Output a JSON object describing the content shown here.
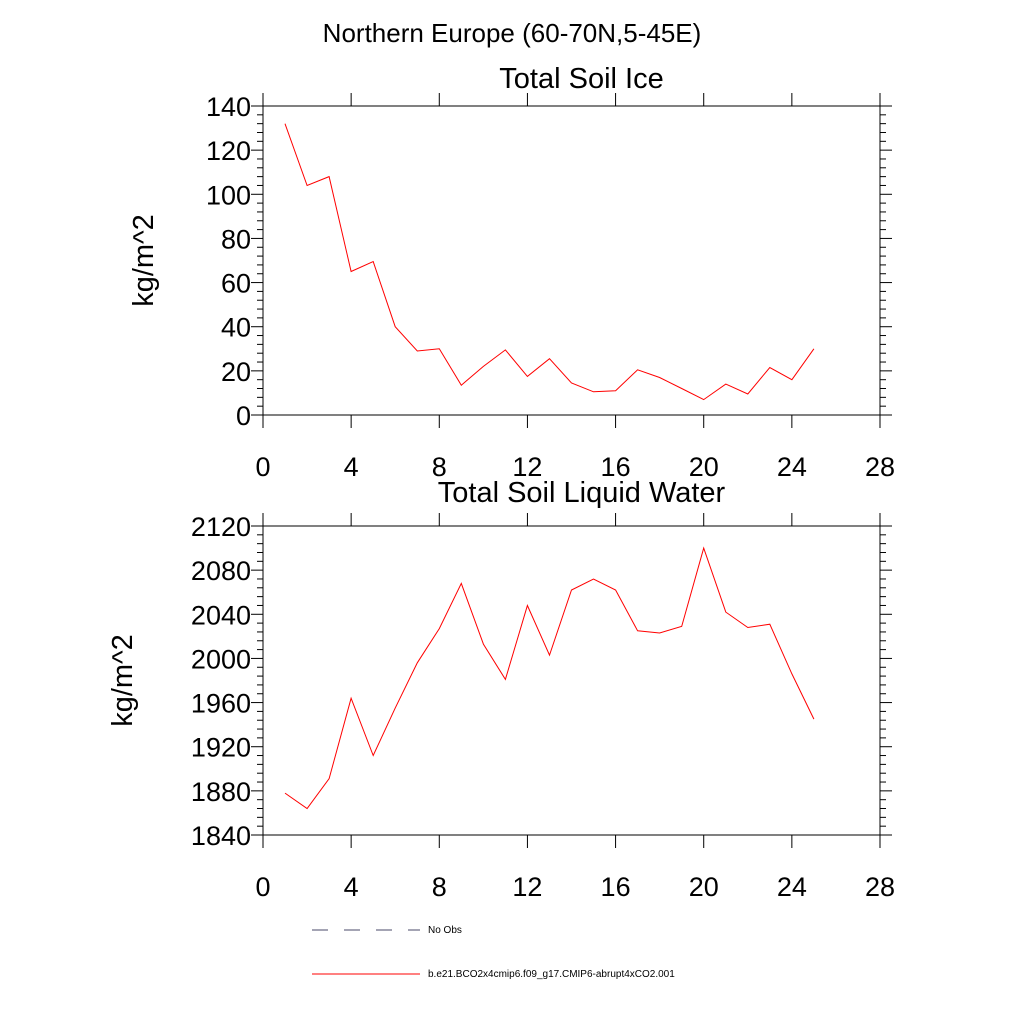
{
  "figure": {
    "title": "Northern Europe (60-70N,5-45E)"
  },
  "chart_data": [
    {
      "type": "line",
      "title": "Total Soil Ice",
      "ylabel": "kg/m^2",
      "xlabel": "",
      "xlim": [
        0,
        28
      ],
      "ylim": [
        0,
        140
      ],
      "xticks": [
        0,
        4,
        8,
        12,
        16,
        20,
        24,
        28
      ],
      "yticks": [
        0,
        20,
        40,
        60,
        80,
        100,
        120,
        140
      ],
      "x": [
        1,
        2,
        3,
        4,
        5,
        6,
        7,
        8,
        9,
        10,
        11,
        12,
        13,
        14,
        15,
        16,
        17,
        18,
        19,
        20,
        21,
        22,
        23,
        24,
        25
      ],
      "series": [
        {
          "name": "b.e21.BCO2x4cmip6.f09_g17.CMIP6-abrupt4xCO2.001",
          "color": "#ff0000",
          "values": [
            132,
            104,
            108,
            65,
            69.5,
            40,
            29,
            30,
            13.5,
            22,
            29.5,
            17.5,
            25.5,
            14.5,
            10.5,
            11,
            20.5,
            17,
            12,
            7,
            14,
            9.5,
            21.5,
            16,
            30
          ]
        }
      ]
    },
    {
      "type": "line",
      "title": "Total Soil Liquid Water",
      "ylabel": "kg/m^2",
      "xlabel": "",
      "xlim": [
        0,
        28
      ],
      "ylim": [
        1840,
        2120
      ],
      "xticks": [
        0,
        4,
        8,
        12,
        16,
        20,
        24,
        28
      ],
      "yticks": [
        1840,
        1880,
        1920,
        1960,
        2000,
        2040,
        2080,
        2120
      ],
      "x": [
        1,
        2,
        3,
        4,
        5,
        6,
        7,
        8,
        9,
        10,
        11,
        12,
        13,
        14,
        15,
        16,
        17,
        18,
        19,
        20,
        21,
        22,
        23,
        24,
        25
      ],
      "series": [
        {
          "name": "b.e21.BCO2x4cmip6.f09_g17.CMIP6-abrupt4xCO2.001",
          "color": "#ff0000",
          "values": [
            1878,
            1864,
            1891,
            1964,
            1912,
            1955,
            1996,
            2027,
            2068,
            2013,
            1981,
            2048,
            2003,
            2062,
            2072,
            2062,
            2025,
            2023,
            2029,
            2100,
            2042,
            2028,
            2031,
            1986,
            1945
          ]
        }
      ]
    }
  ],
  "legend": {
    "placement": "bottom-center",
    "entries": [
      {
        "label": "No Obs",
        "style": "dashed",
        "color": "#4a4a6a"
      },
      {
        "label": "b.e21.BCO2x4cmip6.f09_g17.CMIP6-abrupt4xCO2.001",
        "style": "solid",
        "color": "#ff0000"
      }
    ]
  }
}
